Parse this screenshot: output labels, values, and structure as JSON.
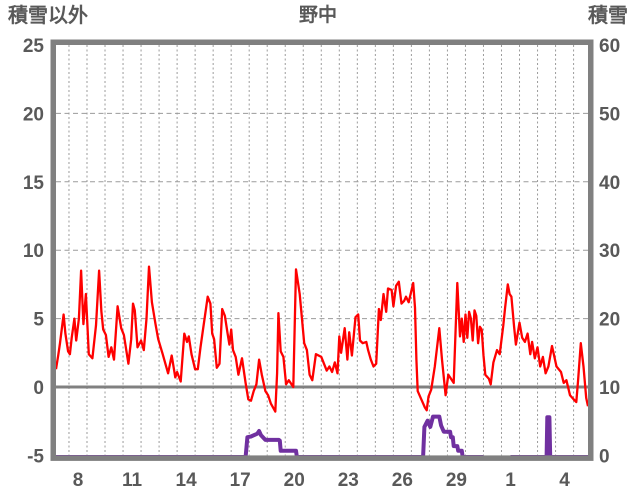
{
  "header": {
    "left_axis_title": "積雪以外",
    "title": "野中",
    "right_axis_title": "積雪"
  },
  "colors": {
    "temperature_series": "#ff0000",
    "snow_series": "#7030a0",
    "axis_frame": "#808080",
    "zero_line": "#808080",
    "gridline": "#9b9b9b",
    "text": "#595959",
    "background": "#ffffff"
  },
  "chart_data": {
    "type": "line",
    "title": "野中",
    "grid": "on",
    "legend": "none",
    "left_axis": {
      "label": "積雪以外",
      "min": -5,
      "max": 25,
      "ticks": [
        25,
        20,
        15,
        10,
        5,
        0,
        -5
      ]
    },
    "right_axis": {
      "label": "積雪",
      "min": 0,
      "max": 60,
      "ticks": [
        60,
        50,
        40,
        30,
        20,
        10,
        0
      ]
    },
    "x_axis": {
      "min_day": 7.28,
      "max_day": 36.8,
      "gridline_interval_days": 1,
      "tick_days": [
        8,
        11,
        14,
        17,
        20,
        23,
        26,
        29,
        32,
        35
      ],
      "tick_labels": [
        "8",
        "11",
        "14",
        "17",
        "20",
        "23",
        "26",
        "29",
        "1",
        "4"
      ]
    },
    "zero_line_value": 0,
    "series": [
      {
        "name": "積雪以外",
        "axis": "left",
        "color": "#ff0000",
        "width": 2.3,
        "segments": [
          [
            [
              7.28,
              1.3
            ],
            [
              7.4,
              2.3
            ],
            [
              7.5,
              3.2
            ],
            [
              7.7,
              5.3
            ],
            [
              7.8,
              3.9
            ],
            [
              7.95,
              2.6
            ],
            [
              8.05,
              2.4
            ],
            [
              8.15,
              3.6
            ],
            [
              8.3,
              5.0
            ],
            [
              8.4,
              3.4
            ],
            [
              8.55,
              5.0
            ],
            [
              8.67,
              8.5
            ],
            [
              8.8,
              4.6
            ],
            [
              8.94,
              6.8
            ],
            [
              9.1,
              2.4
            ],
            [
              9.3,
              2.1
            ],
            [
              9.5,
              4.5
            ],
            [
              9.67,
              8.5
            ],
            [
              9.8,
              5.5
            ],
            [
              9.9,
              4.2
            ],
            [
              10.05,
              3.8
            ],
            [
              10.2,
              2.2
            ],
            [
              10.35,
              2.9
            ],
            [
              10.5,
              2.0
            ],
            [
              10.7,
              5.9
            ],
            [
              10.9,
              4.3
            ],
            [
              11.05,
              3.8
            ],
            [
              11.3,
              1.7
            ],
            [
              11.45,
              3.5
            ],
            [
              11.55,
              6.1
            ],
            [
              11.65,
              5.6
            ],
            [
              11.8,
              2.9
            ],
            [
              12.0,
              3.4
            ],
            [
              12.15,
              2.7
            ],
            [
              12.3,
              5.0
            ],
            [
              12.44,
              8.8
            ],
            [
              12.6,
              6.2
            ],
            [
              12.8,
              4.6
            ],
            [
              12.95,
              3.5
            ],
            [
              13.2,
              2.4
            ],
            [
              13.5,
              1.0
            ],
            [
              13.7,
              2.3
            ],
            [
              13.9,
              0.7
            ],
            [
              14.0,
              1.1
            ],
            [
              14.2,
              0.4
            ],
            [
              14.4,
              3.9
            ],
            [
              14.55,
              3.3
            ],
            [
              14.65,
              3.7
            ],
            [
              14.8,
              2.4
            ],
            [
              15.0,
              1.3
            ],
            [
              15.15,
              1.3
            ],
            [
              15.3,
              2.9
            ],
            [
              15.45,
              4.3
            ],
            [
              15.7,
              6.6
            ],
            [
              15.85,
              6.1
            ],
            [
              15.95,
              3.9
            ],
            [
              16.05,
              3.5
            ],
            [
              16.2,
              1.4
            ],
            [
              16.35,
              1.7
            ],
            [
              16.5,
              5.7
            ],
            [
              16.65,
              5.2
            ],
            [
              16.8,
              3.9
            ],
            [
              16.9,
              3.1
            ],
            [
              17.0,
              4.2
            ],
            [
              17.1,
              2.7
            ],
            [
              17.25,
              2.2
            ],
            [
              17.4,
              0.9
            ],
            [
              17.6,
              2.1
            ],
            [
              17.8,
              0.3
            ],
            [
              17.95,
              -0.9
            ],
            [
              18.1,
              -1.0
            ],
            [
              18.25,
              -0.3
            ],
            [
              18.4,
              0.2
            ],
            [
              18.55,
              2.0
            ],
            [
              18.7,
              0.9
            ],
            [
              18.9,
              -0.3
            ],
            [
              19.05,
              -0.6
            ],
            [
              19.2,
              -1.2
            ],
            [
              19.45,
              -1.8
            ],
            [
              19.55,
              1.0
            ],
            [
              19.62,
              5.4
            ],
            [
              19.75,
              2.6
            ],
            [
              19.9,
              2.2
            ],
            [
              20.05,
              0.2
            ],
            [
              20.2,
              0.5
            ],
            [
              20.45,
              0.0
            ],
            [
              20.6,
              8.6
            ],
            [
              20.8,
              6.8
            ],
            [
              21.05,
              3.2
            ],
            [
              21.2,
              2.7
            ],
            [
              21.35,
              0.9
            ],
            [
              21.5,
              0.5
            ],
            [
              21.7,
              2.4
            ],
            [
              22.0,
              2.2
            ],
            [
              22.3,
              1.2
            ],
            [
              22.45,
              1.5
            ],
            [
              22.6,
              1.1
            ],
            [
              22.75,
              1.8
            ],
            [
              22.9,
              1.0
            ],
            [
              23.0,
              3.7
            ],
            [
              23.1,
              2.5
            ],
            [
              23.3,
              4.3
            ],
            [
              23.45,
              2.0
            ],
            [
              23.55,
              4.0
            ],
            [
              23.7,
              2.3
            ],
            [
              23.9,
              5.1
            ],
            [
              24.05,
              5.3
            ],
            [
              24.15,
              3.4
            ],
            [
              24.3,
              3.2
            ],
            [
              24.5,
              3.3
            ],
            [
              24.6,
              2.7
            ],
            [
              24.75,
              2.0
            ],
            [
              24.9,
              1.5
            ],
            [
              25.05,
              1.7
            ],
            [
              25.2,
              5.7
            ],
            [
              25.3,
              4.9
            ],
            [
              25.45,
              6.8
            ],
            [
              25.6,
              5.5
            ],
            [
              25.7,
              7.2
            ],
            [
              25.9,
              7.1
            ],
            [
              26.0,
              5.9
            ],
            [
              26.15,
              7.4
            ],
            [
              26.3,
              7.7
            ],
            [
              26.45,
              6.1
            ],
            [
              26.6,
              6.3
            ],
            [
              26.7,
              6.6
            ],
            [
              26.85,
              6.2
            ],
            [
              27.1,
              7.6
            ],
            [
              27.2,
              5.8
            ],
            [
              27.28,
              2.0
            ],
            [
              27.35,
              -0.3
            ],
            [
              27.55,
              -0.9
            ],
            [
              27.75,
              -1.5
            ],
            [
              27.85,
              -1.7
            ],
            [
              27.95,
              -0.7
            ],
            [
              28.1,
              -0.2
            ],
            [
              28.3,
              1.5
            ],
            [
              28.55,
              4.3
            ],
            [
              28.7,
              2.0
            ],
            [
              28.9,
              -0.6
            ],
            [
              29.05,
              0.9
            ],
            [
              29.2,
              0.6
            ],
            [
              29.35,
              0.3
            ],
            [
              29.55,
              7.6
            ],
            [
              29.7,
              3.7
            ],
            [
              29.8,
              5.0
            ],
            [
              29.9,
              3.3
            ],
            [
              30.0,
              5.3
            ],
            [
              30.1,
              3.6
            ],
            [
              30.2,
              5.5
            ],
            [
              30.3,
              5.0
            ],
            [
              30.4,
              3.4
            ],
            [
              30.5,
              5.6
            ],
            [
              30.6,
              5.2
            ],
            [
              30.7,
              3.2
            ],
            [
              30.8,
              4.4
            ],
            [
              30.9,
              4.2
            ],
            [
              31.0,
              2.3
            ],
            [
              31.1,
              0.9
            ],
            [
              31.3,
              0.6
            ],
            [
              31.4,
              0.2
            ],
            [
              31.55,
              1.8
            ],
            [
              31.75,
              2.7
            ],
            [
              31.9,
              2.4
            ],
            [
              32.1,
              4.5
            ],
            [
              32.2,
              5.8
            ],
            [
              32.35,
              7.5
            ],
            [
              32.45,
              6.8
            ],
            [
              32.55,
              6.6
            ],
            [
              32.7,
              4.4
            ],
            [
              32.8,
              3.1
            ],
            [
              33.0,
              4.7
            ],
            [
              33.15,
              3.6
            ],
            [
              33.3,
              3.3
            ],
            [
              33.45,
              3.9
            ],
            [
              33.6,
              2.4
            ],
            [
              33.7,
              3.3
            ],
            [
              33.85,
              2.1
            ],
            [
              34.0,
              2.9
            ],
            [
              34.15,
              1.5
            ],
            [
              34.3,
              2.2
            ],
            [
              34.45,
              1.0
            ],
            [
              34.6,
              1.5
            ],
            [
              34.8,
              3.0
            ],
            [
              35.05,
              1.5
            ],
            [
              35.3,
              1.1
            ],
            [
              35.45,
              0.3
            ],
            [
              35.6,
              0.5
            ],
            [
              35.8,
              -0.6
            ],
            [
              36.0,
              -0.9
            ],
            [
              36.15,
              -1.1
            ],
            [
              36.25,
              0.5
            ],
            [
              36.4,
              3.2
            ],
            [
              36.55,
              1.5
            ],
            [
              36.7,
              -0.8
            ],
            [
              36.8,
              -1.4
            ]
          ]
        ]
      },
      {
        "name": "積雪",
        "axis": "right",
        "color": "#7030a0",
        "width": 4,
        "segments": [
          [
            [
              7.28,
              0
            ],
            [
              17.8,
              0
            ],
            [
              17.9,
              2.9
            ],
            [
              18.1,
              3.0
            ],
            [
              18.45,
              3.4
            ],
            [
              18.55,
              3.8
            ],
            [
              18.65,
              3.2
            ],
            [
              18.9,
              2.5
            ],
            [
              19.65,
              2.5
            ],
            [
              19.7,
              2.4
            ],
            [
              19.75,
              0.9
            ],
            [
              20.6,
              0.9
            ],
            [
              20.65,
              0
            ],
            [
              27.65,
              0
            ],
            [
              27.72,
              4.4
            ],
            [
              27.9,
              5.3
            ],
            [
              28.05,
              4.4
            ],
            [
              28.2,
              5.9
            ],
            [
              28.55,
              5.9
            ],
            [
              28.65,
              4.6
            ],
            [
              28.8,
              3.7
            ],
            [
              29.15,
              3.7
            ],
            [
              29.2,
              2.9
            ],
            [
              29.3,
              2.9
            ],
            [
              29.35,
              1.6
            ],
            [
              29.55,
              1.6
            ],
            [
              29.6,
              0.9
            ],
            [
              29.8,
              0.9
            ],
            [
              29.85,
              0
            ],
            [
              31.0,
              0
            ]
          ],
          [
            [
              32.5,
              0
            ],
            [
              34.5,
              0
            ],
            [
              34.54,
              5.8
            ],
            [
              34.66,
              5.8
            ],
            [
              34.7,
              0
            ],
            [
              36.8,
              0
            ]
          ]
        ]
      }
    ]
  }
}
